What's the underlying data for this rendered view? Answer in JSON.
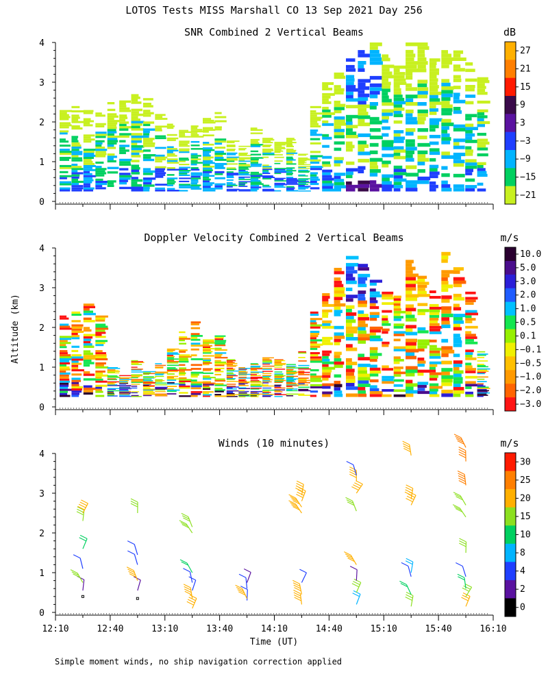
{
  "figure": {
    "title": "LOTOS Tests MISS Marshall CO  13 Sep 2021 Day 256",
    "ylabel": "Altitude (km)",
    "xlabel": "Time (UT)",
    "footnote": "Simple moment winds, no ship navigation correction applied"
  },
  "chart_data": [
    {
      "type": "heatmap",
      "title": "SNR Combined 2 Vertical Beams",
      "xlabel": "Time (UT)",
      "ylabel": "Altitude (km)",
      "x_ticks": [
        "12:10",
        "12:40",
        "13:10",
        "13:40",
        "14:10",
        "14:40",
        "15:10",
        "15:40",
        "16:10"
      ],
      "y_ticks": [
        "0",
        "1",
        "2",
        "3",
        "4"
      ],
      "ylim": [
        0,
        4
      ],
      "colorbar": {
        "unit": "dB",
        "labels": [
          "27",
          "21",
          "15",
          "9",
          "3",
          "−3",
          "−9",
          "−15",
          "−21"
        ],
        "colors": [
          "#ffb000",
          "#ff7f00",
          "#ff1a00",
          "#3a0a4a",
          "#5a12a0",
          "#1f3fff",
          "#00b4ff",
          "#00d060",
          "#c8f020"
        ]
      },
      "column_tops_km": [
        2.3,
        2.4,
        2.3,
        2.4,
        2.5,
        2.6,
        2.7,
        2.6,
        2.2,
        2.0,
        1.8,
        2.0,
        2.1,
        2.3,
        1.6,
        1.4,
        1.9,
        1.6,
        1.5,
        1.6,
        1.2,
        2.4,
        3.0,
        3.4,
        3.6,
        3.9,
        4.0,
        3.7,
        3.5,
        4.0,
        4.0,
        3.6,
        3.9,
        3.8,
        3.5,
        3.2
      ],
      "column_bottoms_km": [
        0.25,
        0.25,
        0.25,
        0.25,
        0.25,
        0.25,
        0.25,
        0.25,
        0.25,
        0.25,
        0.25,
        0.25,
        0.25,
        0.25,
        0.25,
        0.25,
        0.25,
        0.25,
        0.25,
        0.25,
        0.25,
        0.25,
        0.25,
        0.25,
        0.25,
        0.25,
        0.25,
        0.25,
        0.25,
        0.25,
        0.25,
        0.25,
        0.25,
        0.25,
        0.25,
        0.25
      ]
    },
    {
      "type": "heatmap",
      "title": "Doppler Velocity Combined 2 Vertical Beams",
      "xlabel": "Time (UT)",
      "ylabel": "Altitude (km)",
      "x_ticks": [
        "12:10",
        "12:40",
        "13:10",
        "13:40",
        "14:10",
        "14:40",
        "15:10",
        "15:40",
        "16:10"
      ],
      "y_ticks": [
        "0",
        "1",
        "2",
        "3",
        "4"
      ],
      "ylim": [
        0,
        4
      ],
      "colorbar": {
        "unit": "m/s",
        "labels": [
          "10.0",
          "5.0",
          "3.0",
          "2.0",
          "1.0",
          "0.5",
          "0.1",
          "−0.1",
          "−0.5",
          "−1.0",
          "−2.0",
          "−3.0"
        ],
        "colors": [
          "#2a0030",
          "#4a0d8c",
          "#2b1fd8",
          "#1f5cff",
          "#00c0ff",
          "#14e650",
          "#96f000",
          "#f0f000",
          "#ffc000",
          "#ff9a00",
          "#ff6400",
          "#ff1414"
        ]
      },
      "column_tops_km": [
        2.3,
        2.4,
        2.6,
        2.3,
        1.0,
        0.8,
        1.2,
        0.9,
        1.1,
        1.5,
        1.9,
        2.2,
        1.7,
        1.8,
        1.2,
        1.0,
        1.1,
        1.3,
        1.2,
        1.1,
        1.4,
        2.4,
        3.0,
        3.5,
        3.8,
        3.6,
        3.2,
        2.9,
        2.8,
        3.7,
        3.3,
        3.0,
        3.9,
        3.6,
        2.9,
        1.4
      ],
      "column_bottoms_km": [
        0.25,
        0.25,
        0.25,
        0.25,
        0.25,
        0.25,
        0.25,
        0.25,
        0.25,
        0.25,
        0.25,
        0.25,
        0.25,
        0.25,
        0.25,
        0.25,
        0.25,
        0.25,
        0.25,
        0.25,
        0.25,
        0.25,
        0.25,
        0.25,
        0.25,
        0.25,
        0.25,
        0.25,
        0.25,
        0.25,
        0.25,
        0.25,
        0.25,
        0.25,
        0.25,
        0.25
      ]
    },
    {
      "type": "scatter",
      "title": "Winds (10 minutes)",
      "xlabel": "Time (UT)",
      "ylabel": "Altitude (km)",
      "x_ticks": [
        "12:10",
        "12:40",
        "13:10",
        "13:40",
        "14:10",
        "14:40",
        "15:10",
        "15:40",
        "16:10"
      ],
      "y_ticks": [
        "0",
        "1",
        "2",
        "3",
        "4"
      ],
      "ylim": [
        0,
        4
      ],
      "colorbar": {
        "unit": "m/s",
        "labels": [
          "30",
          "25",
          "20",
          "15",
          "10",
          "8",
          "4",
          "2",
          "0"
        ],
        "colors": [
          "#ff1a00",
          "#ff7f00",
          "#ffb000",
          "#8ce020",
          "#00d060",
          "#00b4ff",
          "#1f3fff",
          "#5a12a0",
          "#000000"
        ]
      },
      "profiles": [
        {
          "time": "12:25",
          "barbs": [
            {
              "alt_km": 0.4,
              "speed": 0
            },
            {
              "alt_km": 0.55,
              "speed": 3
            },
            {
              "alt_km": 0.75,
              "speed": 18
            },
            {
              "alt_km": 1.1,
              "speed": 6
            },
            {
              "alt_km": 1.6,
              "speed": 13
            },
            {
              "alt_km": 2.3,
              "speed": 16
            },
            {
              "alt_km": 2.5,
              "speed": 21
            }
          ]
        },
        {
          "time": "12:55",
          "barbs": [
            {
              "alt_km": 0.35,
              "speed": 0
            },
            {
              "alt_km": 0.55,
              "speed": 3
            },
            {
              "alt_km": 0.8,
              "speed": 22
            },
            {
              "alt_km": 1.2,
              "speed": 5
            },
            {
              "alt_km": 1.45,
              "speed": 5
            },
            {
              "alt_km": 2.5,
              "speed": 18
            }
          ]
        },
        {
          "time": "13:25",
          "barbs": [
            {
              "alt_km": 0.1,
              "speed": 22
            },
            {
              "alt_km": 0.35,
              "speed": 21
            },
            {
              "alt_km": 0.55,
              "speed": 4
            },
            {
              "alt_km": 0.75,
              "speed": 4
            },
            {
              "alt_km": 1.0,
              "speed": 12
            },
            {
              "alt_km": 2.0,
              "speed": 15
            },
            {
              "alt_km": 2.15,
              "speed": 15
            }
          ]
        },
        {
          "time": "13:55",
          "barbs": [
            {
              "alt_km": 0.3,
              "speed": 4
            },
            {
              "alt_km": 0.6,
              "speed": 4
            },
            {
              "alt_km": 0.75,
              "speed": 3
            },
            {
              "alt_km": 0.35,
              "speed": 24
            }
          ]
        },
        {
          "time": "14:25",
          "barbs": [
            {
              "alt_km": 0.2,
              "speed": 21
            },
            {
              "alt_km": 0.45,
              "speed": 22
            },
            {
              "alt_km": 0.75,
              "speed": 4
            },
            {
              "alt_km": 2.5,
              "speed": 21
            },
            {
              "alt_km": 2.65,
              "speed": 21
            },
            {
              "alt_km": 2.8,
              "speed": 21
            },
            {
              "alt_km": 2.95,
              "speed": 21
            }
          ]
        },
        {
          "time": "14:55",
          "barbs": [
            {
              "alt_km": 0.2,
              "speed": 9
            },
            {
              "alt_km": 0.5,
              "speed": 18
            },
            {
              "alt_km": 0.8,
              "speed": 3
            },
            {
              "alt_km": 1.2,
              "speed": 22
            },
            {
              "alt_km": 2.55,
              "speed": 19
            },
            {
              "alt_km": 3.0,
              "speed": 21
            },
            {
              "alt_km": 3.3,
              "speed": 21
            },
            {
              "alt_km": 3.45,
              "speed": 4
            }
          ]
        },
        {
          "time": "15:25",
          "barbs": [
            {
              "alt_km": 0.15,
              "speed": 17
            },
            {
              "alt_km": 0.45,
              "speed": 13
            },
            {
              "alt_km": 0.9,
              "speed": 5
            },
            {
              "alt_km": 1.0,
              "speed": 9
            },
            {
              "alt_km": 2.7,
              "speed": 23
            },
            {
              "alt_km": 2.85,
              "speed": 21
            },
            {
              "alt_km": 3.95,
              "speed": 21
            }
          ]
        },
        {
          "time": "15:55",
          "barbs": [
            {
              "alt_km": 0.15,
              "speed": 20
            },
            {
              "alt_km": 0.4,
              "speed": 16
            },
            {
              "alt_km": 0.6,
              "speed": 14
            },
            {
              "alt_km": 0.9,
              "speed": 4
            },
            {
              "alt_km": 1.5,
              "speed": 15
            },
            {
              "alt_km": 2.4,
              "speed": 16
            },
            {
              "alt_km": 2.7,
              "speed": 17
            },
            {
              "alt_km": 3.2,
              "speed": 27
            },
            {
              "alt_km": 3.8,
              "speed": 26
            },
            {
              "alt_km": 4.15,
              "speed": 26
            }
          ]
        }
      ]
    }
  ]
}
